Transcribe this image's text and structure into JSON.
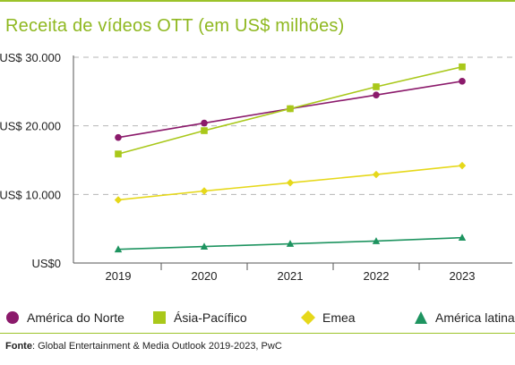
{
  "page": {
    "title": "Receita de vídeos OTT (em US$ milhões)",
    "source_label": "Fonte",
    "source_text": ": Global Entertainment & Media Outlook 2019-2023, PwC"
  },
  "colors": {
    "accent": "#9cc32a",
    "grid": "#b5b5b5",
    "axis": "#555555"
  },
  "chart_data": {
    "type": "line",
    "title": "Receita de vídeos OTT (em US$ milhões)",
    "xlabel": "",
    "ylabel": "",
    "x": [
      "2019",
      "2020",
      "2021",
      "2022",
      "2023"
    ],
    "ylim": [
      0,
      30000
    ],
    "yticks": [
      {
        "value": 0,
        "label": "US$0"
      },
      {
        "value": 10000,
        "label": "US$ 10.000"
      },
      {
        "value": 20000,
        "label": "US$ 20.000"
      },
      {
        "value": 30000,
        "label": "US$ 30.000"
      }
    ],
    "grid": true,
    "legend": "bottom",
    "series": [
      {
        "name": "América do Norte",
        "color": "#8b1a6b",
        "marker": "circle",
        "values": [
          18300,
          20400,
          22500,
          24500,
          26500
        ]
      },
      {
        "name": "Ásia-Pacífico",
        "color": "#a9c81a",
        "marker": "square",
        "values": [
          15900,
          19300,
          22500,
          25700,
          28600
        ]
      },
      {
        "name": "Emea",
        "color": "#e6d81a",
        "marker": "diamond",
        "values": [
          9200,
          10500,
          11700,
          12900,
          14200
        ]
      },
      {
        "name": "América latina",
        "color": "#1e9460",
        "marker": "triangle",
        "values": [
          2000,
          2400,
          2800,
          3200,
          3700
        ]
      }
    ]
  }
}
